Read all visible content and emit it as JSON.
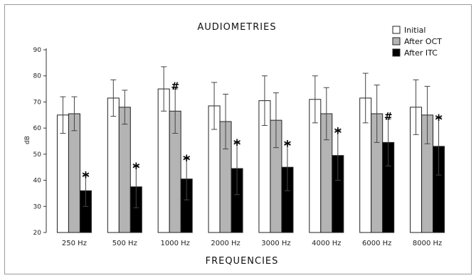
{
  "chart_data": {
    "type": "bar",
    "title": "AUDIOMETRIES",
    "xlabel": "FREQUENCIES",
    "ylabel": "dB",
    "ylim": [
      20,
      90
    ],
    "yticks": [
      "20",
      "30",
      "40",
      "50",
      "60",
      "70",
      "80",
      "90"
    ],
    "categories": [
      "250 Hz",
      "500 Hz",
      "1000 Hz",
      "2000 Hz",
      "3000 Hz",
      "4000 Hz",
      "6000 Hz",
      "8000 Hz"
    ],
    "legend_position": "top-right",
    "grid": false,
    "series": [
      {
        "name": "Initial",
        "color": "#ffffff",
        "values": [
          65,
          71.5,
          75,
          68.5,
          70.5,
          71,
          71.5,
          68
        ],
        "error": [
          7,
          7,
          8.5,
          9,
          9.5,
          9,
          9.5,
          10.5
        ]
      },
      {
        "name": "After OCT",
        "color": "#b4b4b4",
        "values": [
          65.5,
          68,
          66.5,
          62.5,
          63,
          65.5,
          65.5,
          65
        ],
        "error": [
          6.5,
          6.5,
          8.5,
          10.5,
          10.5,
          10,
          11,
          11
        ]
      },
      {
        "name": "After ITC",
        "color": "#000000",
        "values": [
          36,
          37.5,
          40.5,
          44.5,
          45,
          49.5,
          54.5,
          53
        ],
        "error": [
          6,
          8,
          8,
          10,
          9,
          9.5,
          9,
          11
        ]
      }
    ],
    "annotations": [
      {
        "category": "250 Hz",
        "series": "After ITC",
        "label": "*"
      },
      {
        "category": "500 Hz",
        "series": "After ITC",
        "label": "*"
      },
      {
        "category": "1000 Hz",
        "series": "After OCT",
        "label": "#"
      },
      {
        "category": "1000 Hz",
        "series": "After ITC",
        "label": "*"
      },
      {
        "category": "2000 Hz",
        "series": "After ITC",
        "label": "*"
      },
      {
        "category": "3000 Hz",
        "series": "After ITC",
        "label": "*"
      },
      {
        "category": "4000 Hz",
        "series": "After ITC",
        "label": "*"
      },
      {
        "category": "6000 Hz",
        "series": "After ITC",
        "label": "#"
      },
      {
        "category": "8000 Hz",
        "series": "After ITC",
        "label": "*"
      }
    ]
  }
}
